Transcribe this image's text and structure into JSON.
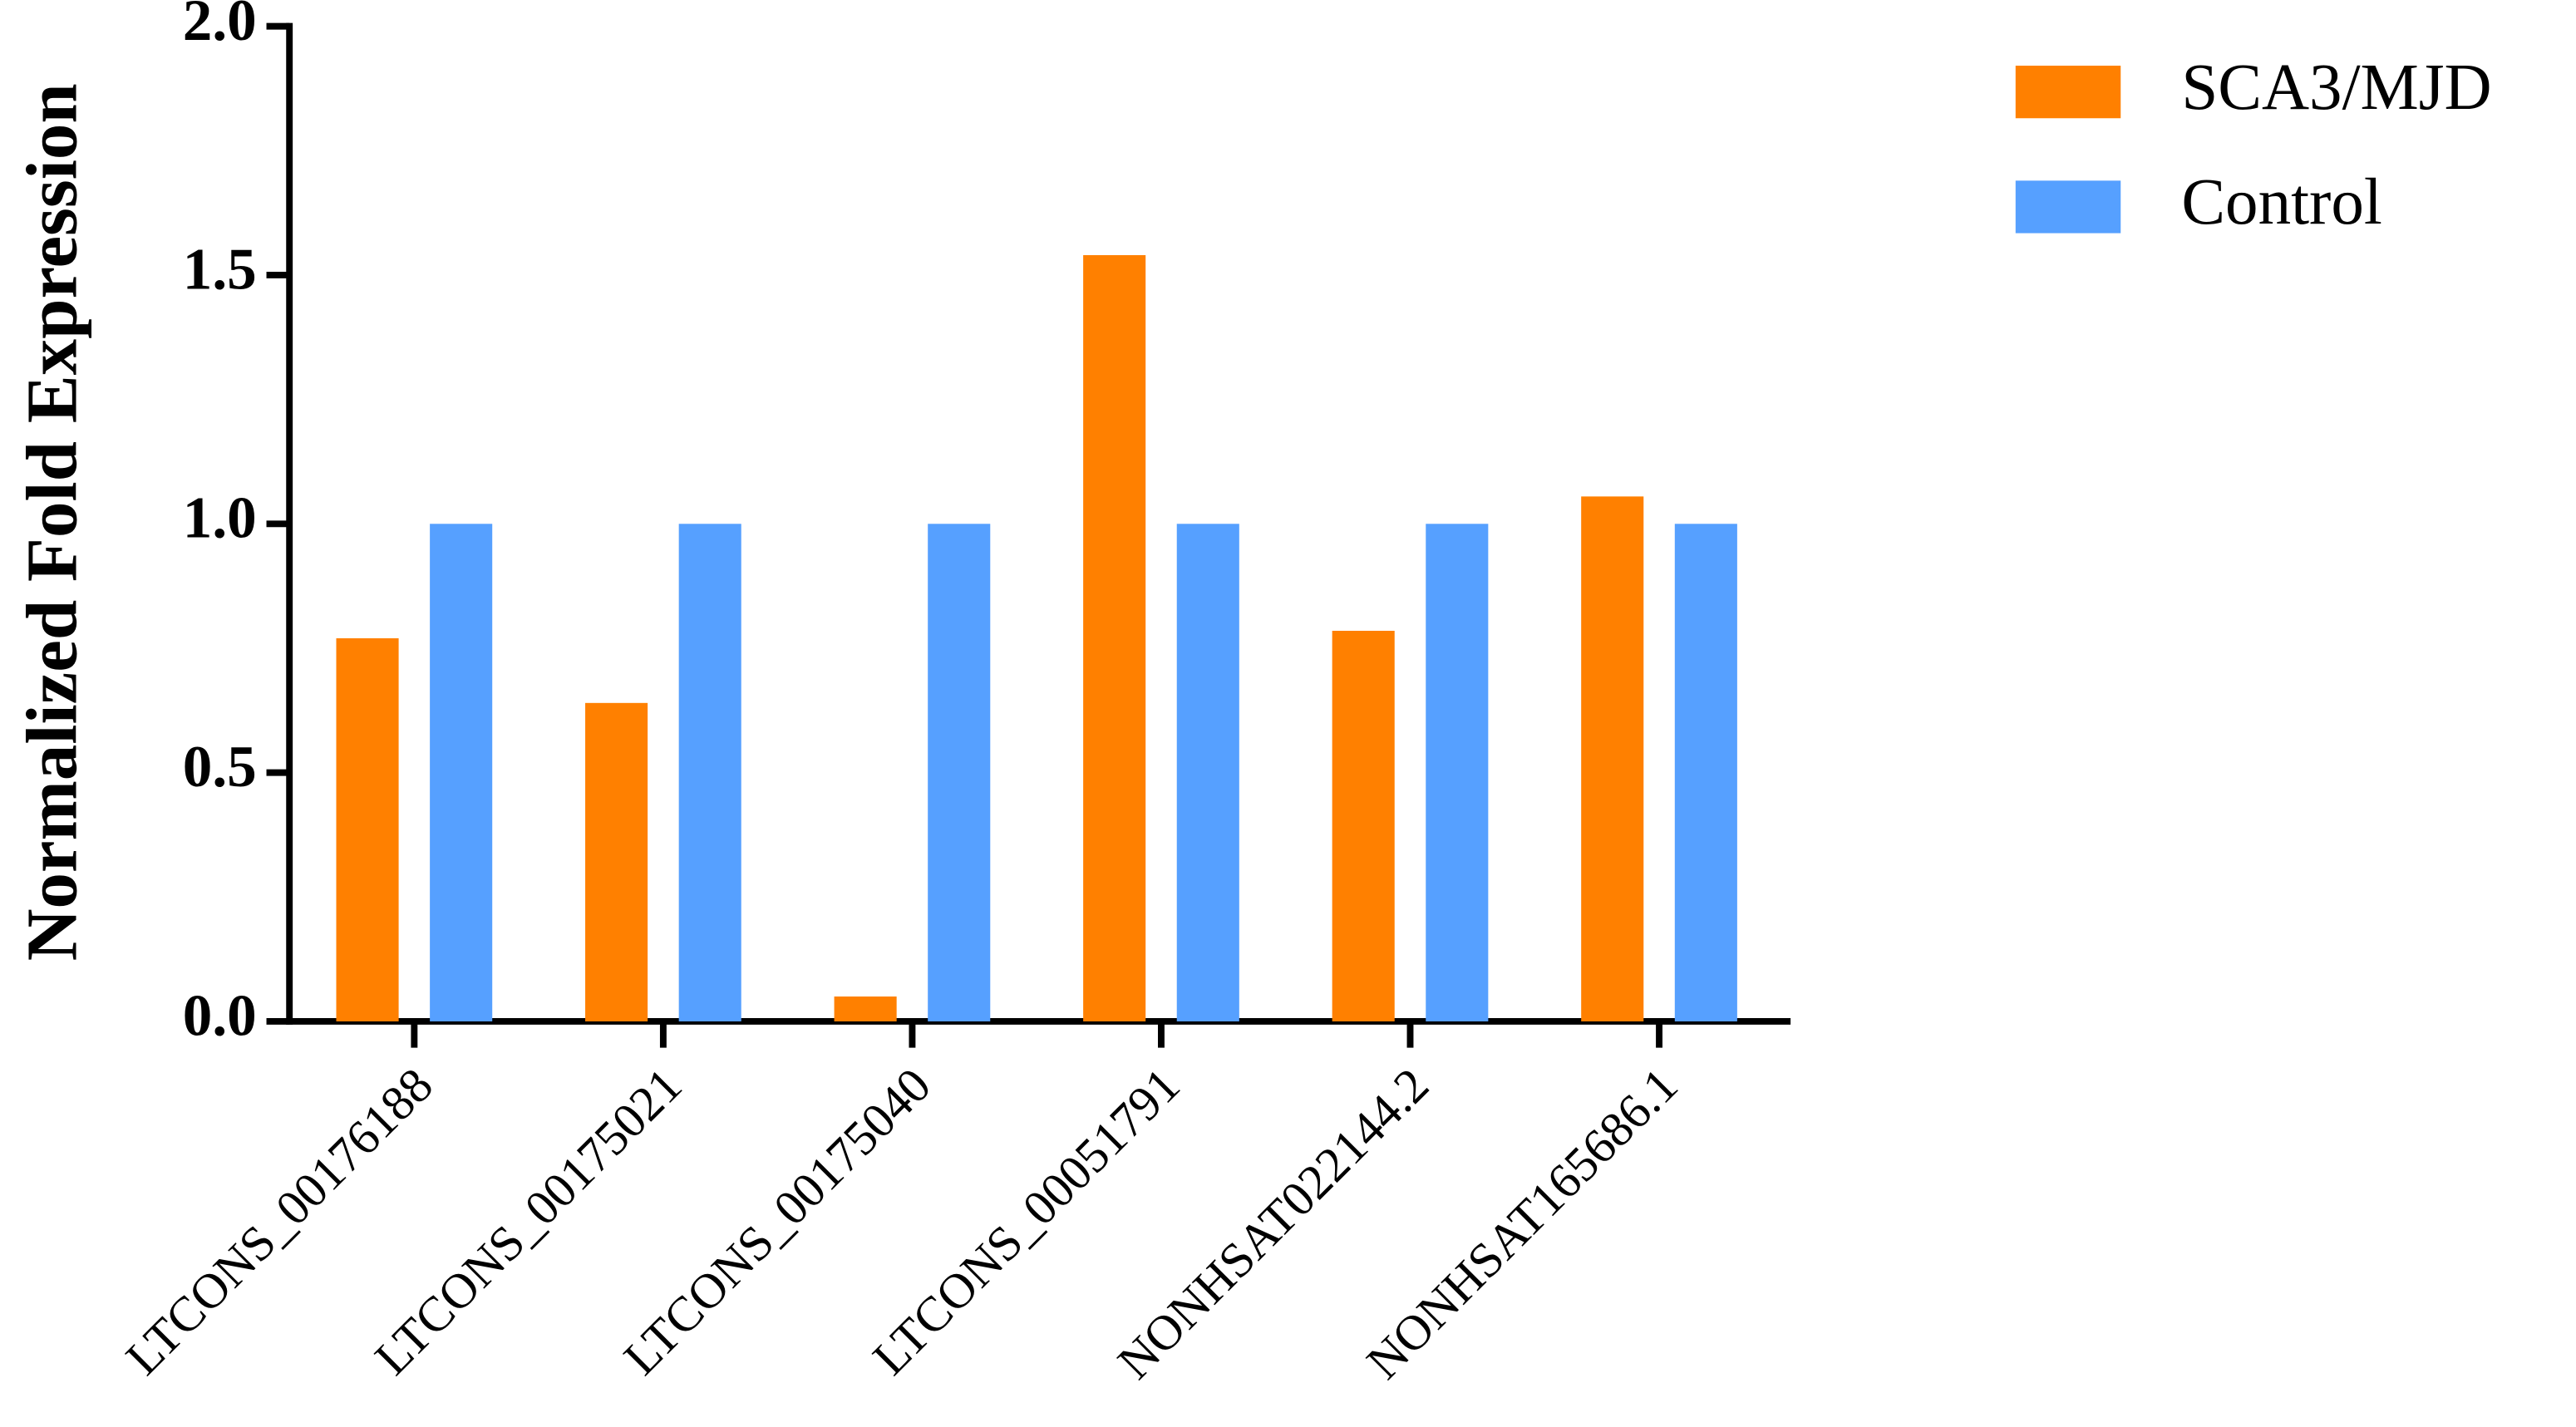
{
  "chart_data": {
    "type": "bar",
    "y_label": "Normalized Fold Expression",
    "categories": [
      "LTCONS_00176188",
      "LTCONS_00175021",
      "LTCONS_00175040",
      "LTCONS_00051791",
      "NONHSAT022144.2",
      "NONHSAT165686.1"
    ],
    "series": [
      {
        "name": "SCA3/MJD",
        "color": "#ff8000",
        "values": [
          0.77,
          0.64,
          0.05,
          1.54,
          0.785,
          1.055
        ]
      },
      {
        "name": "Control",
        "color": "#56a0ff",
        "values": [
          1,
          1,
          1,
          1,
          1,
          1
        ]
      }
    ],
    "ylim": [
      0,
      2
    ],
    "yticks": [
      {
        "value": 0,
        "label": "0.0"
      },
      {
        "value": 0.5,
        "label": "0.5"
      },
      {
        "value": 1,
        "label": "1.0"
      },
      {
        "value": 1.5,
        "label": "1.5"
      },
      {
        "value": 2,
        "label": "2.0"
      }
    ],
    "grid": false,
    "legend": "right"
  }
}
